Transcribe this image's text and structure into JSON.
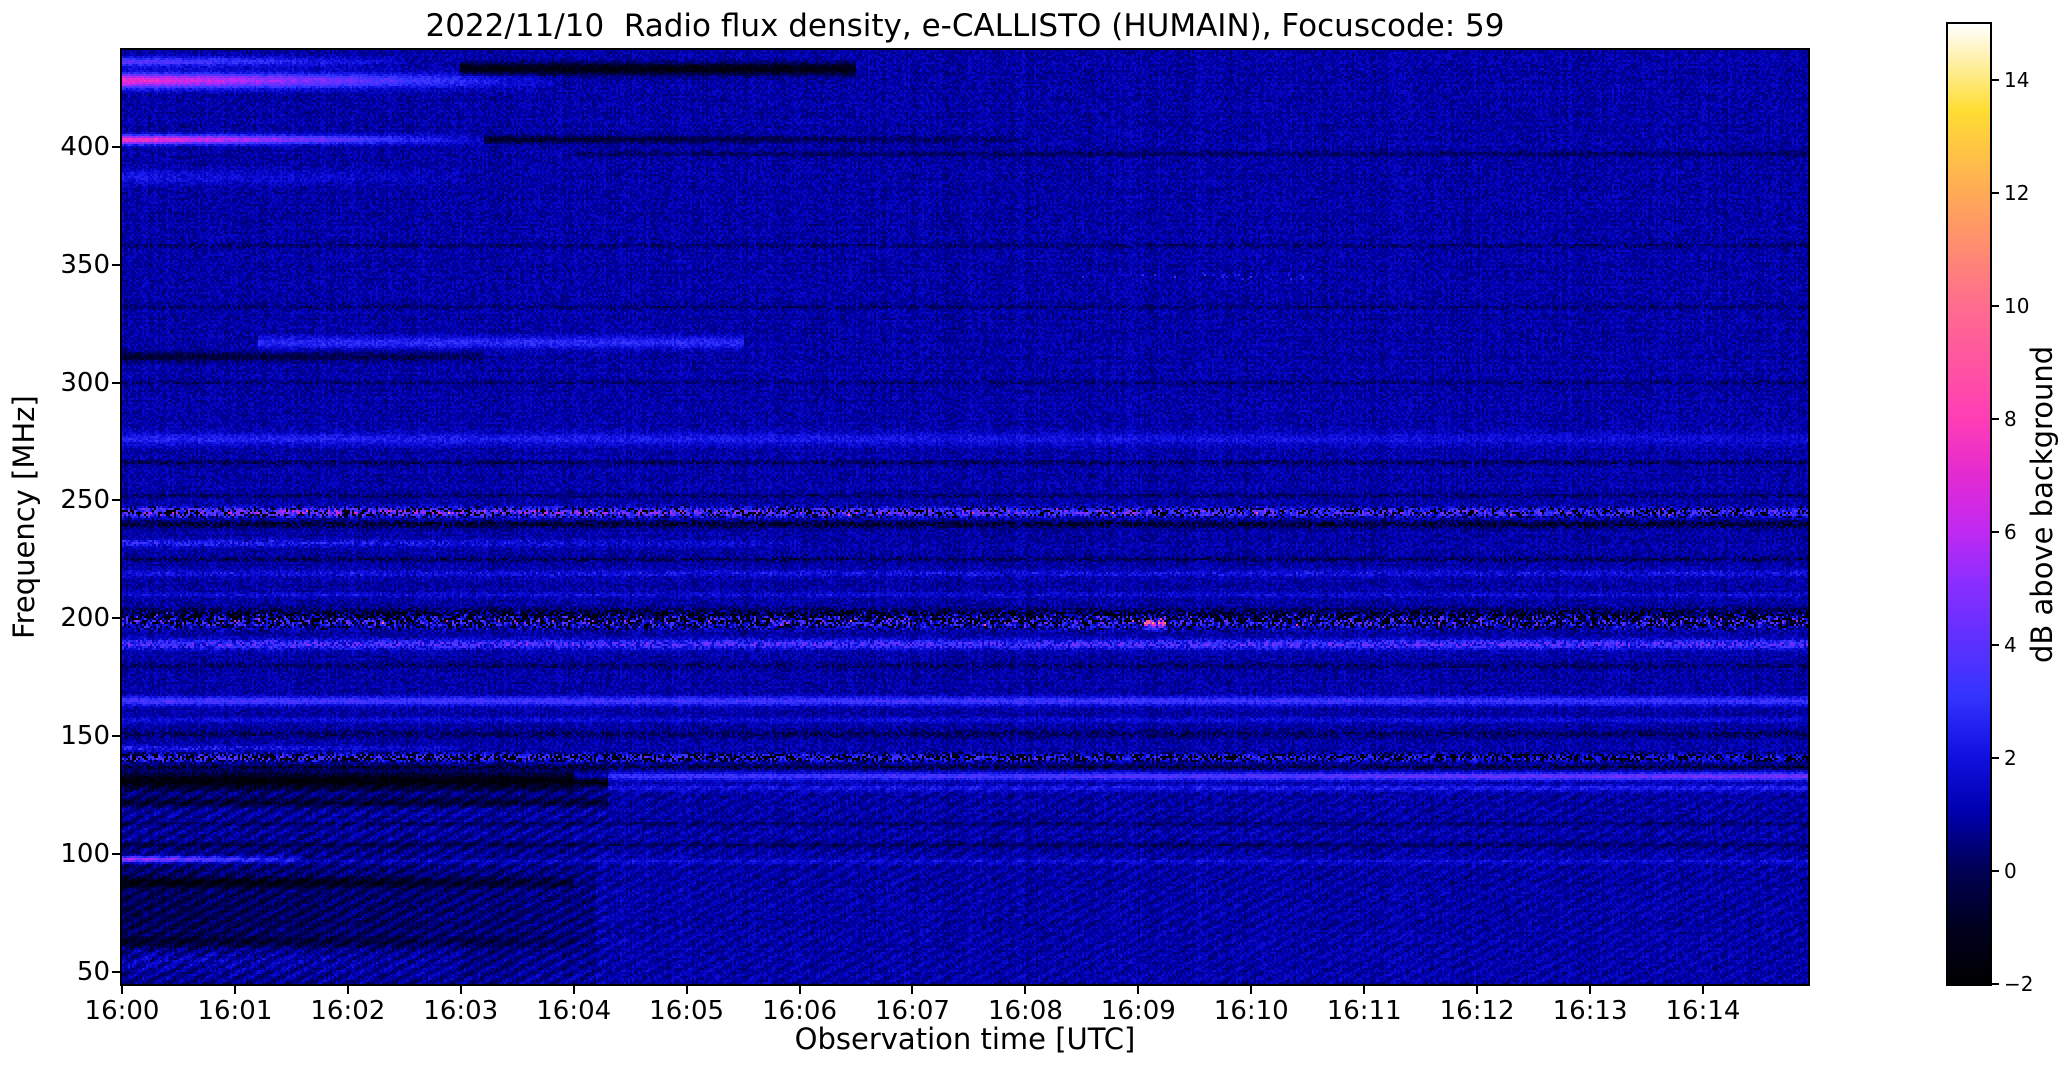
{
  "figure": {
    "background": "#ffffff",
    "text_color": "#000000"
  },
  "chart_data": {
    "type": "heatmap",
    "title": "2022/11/10  Radio flux density, e-CALLISTO (HUMAIN), Focuscode: 59",
    "xlabel": "Observation time [UTC]",
    "ylabel": "Frequency [MHz]",
    "colorbar_label": "dB above background",
    "legend_position": "right-colorbar",
    "grid": false,
    "time_range_min": [
      0,
      14.93
    ],
    "xtick_minutes": [
      0,
      1,
      2,
      3,
      4,
      5,
      6,
      7,
      8,
      9,
      10,
      11,
      12,
      13,
      14
    ],
    "xtick_labels": [
      "16:00",
      "16:01",
      "16:02",
      "16:03",
      "16:04",
      "16:05",
      "16:06",
      "16:07",
      "16:08",
      "16:09",
      "16:10",
      "16:11",
      "16:12",
      "16:13",
      "16:14"
    ],
    "freq_range_mhz": [
      45,
      441
    ],
    "ytick_freqs": [
      50,
      100,
      150,
      200,
      250,
      300,
      350,
      400
    ],
    "ytick_labels": [
      "50",
      "100",
      "150",
      "200",
      "250",
      "300",
      "350",
      "400"
    ],
    "value_range_db": [
      -2,
      15
    ],
    "colorbar_ticks": [
      {
        "v": 14,
        "label": "14"
      },
      {
        "v": 12,
        "label": "12"
      },
      {
        "v": 10,
        "label": "10"
      },
      {
        "v": 8,
        "label": "8"
      },
      {
        "v": 6,
        "label": "6"
      },
      {
        "v": 4,
        "label": "4"
      },
      {
        "v": 2,
        "label": "2"
      },
      {
        "v": 0,
        "label": "0"
      },
      {
        "v": -2,
        "label": "−2"
      }
    ],
    "colormap_name": "gnuplot2-like",
    "colormap_stops": [
      [
        0.0,
        "#000000"
      ],
      [
        0.06,
        "#000020"
      ],
      [
        0.12,
        "#000055"
      ],
      [
        0.18,
        "#0000b0"
      ],
      [
        0.24,
        "#1111e2"
      ],
      [
        0.3,
        "#3434ff"
      ],
      [
        0.36,
        "#6030ff"
      ],
      [
        0.42,
        "#8c2eff"
      ],
      [
        0.47,
        "#bf29f2"
      ],
      [
        0.53,
        "#e32ad2"
      ],
      [
        0.59,
        "#ff3eb4"
      ],
      [
        0.71,
        "#ff6e8c"
      ],
      [
        0.82,
        "#ffa858"
      ],
      [
        0.91,
        "#ffdd33"
      ],
      [
        1.0,
        "#ffffff"
      ]
    ],
    "background_db": 1.0,
    "noise_db": 0.6,
    "texture": {
      "f_max": 130,
      "t_split": 4.3,
      "amp_left": 0.5,
      "amp_right": 0.28
    },
    "bands": [
      {
        "f": 428,
        "hw": 3.0,
        "t": [
          0,
          3.8
        ],
        "v": [
          6.5,
          0.5
        ],
        "style": "smooth"
      },
      {
        "f": 436,
        "hw": 2.0,
        "t": [
          0,
          2.5
        ],
        "v": [
          3.0,
          0.5
        ],
        "style": "smooth"
      },
      {
        "f": 433,
        "hw": 2.5,
        "t": [
          3.0,
          6.5
        ],
        "v": [
          -2.5,
          -2.5
        ],
        "style": "smooth"
      },
      {
        "f": 403,
        "hw": 1.8,
        "t": [
          0,
          3.2
        ],
        "v": [
          7.0,
          0.5
        ],
        "style": "smooth"
      },
      {
        "f": 403,
        "hw": 1.6,
        "t": [
          3.2,
          8.0
        ],
        "v": [
          -1.8,
          -0.5
        ],
        "style": "smooth"
      },
      {
        "f": 397,
        "hw": 1.0,
        "t": [
          4,
          14.93
        ],
        "v": [
          -0.9,
          -0.9
        ],
        "style": "smooth"
      },
      {
        "f": 387,
        "hw": 3.0,
        "t": [
          0,
          3.0
        ],
        "v": [
          1.2,
          0.3
        ],
        "style": "smooth"
      },
      {
        "f": 358,
        "hw": 1.0,
        "t": [
          0,
          14.93
        ],
        "v": [
          -0.7,
          -0.7
        ],
        "style": "speckle"
      },
      {
        "f": 345,
        "hw": 1.5,
        "t": [
          8.5,
          10.5
        ],
        "v": [
          1.5,
          1.5
        ],
        "style": "speckle",
        "sparse": 0.1
      },
      {
        "f": 332,
        "hw": 1.0,
        "t": [
          0,
          14.93
        ],
        "v": [
          -0.6,
          -0.6
        ],
        "style": "speckle"
      },
      {
        "f": 311,
        "hw": 2.0,
        "t": [
          0,
          3.2
        ],
        "v": [
          -1.6,
          -0.8
        ],
        "style": "smooth"
      },
      {
        "f": 317,
        "hw": 2.5,
        "t": [
          1.2,
          5.5
        ],
        "v": [
          1.8,
          1.8
        ],
        "style": "smooth"
      },
      {
        "f": 300,
        "hw": 0.8,
        "t": [
          0,
          14.93
        ],
        "v": [
          -0.7,
          -0.7
        ],
        "style": "speckle"
      },
      {
        "f": 276,
        "hw": 2.5,
        "t": [
          0,
          14.93
        ],
        "v": [
          1.6,
          0.8
        ],
        "style": "smooth"
      },
      {
        "f": 266,
        "hw": 1.0,
        "t": [
          0,
          14.93
        ],
        "v": [
          -0.9,
          -0.9
        ],
        "style": "speckle"
      },
      {
        "f": 252,
        "hw": 0.8,
        "t": [
          0,
          14.93
        ],
        "v": [
          -0.8,
          -0.8
        ],
        "style": "speckle"
      },
      {
        "f": 245,
        "hw": 2.0,
        "t": [
          0,
          14.93
        ],
        "v": [
          3.4,
          2.0
        ],
        "style": "speckle",
        "dark": 0.3,
        "spike": 0.003
      },
      {
        "f": 240,
        "hw": 1.5,
        "t": [
          0,
          14.93
        ],
        "v": [
          -1.5,
          -1.5
        ],
        "style": "speckle"
      },
      {
        "f": 232,
        "hw": 1.5,
        "t": [
          0,
          6.0
        ],
        "v": [
          1.5,
          0.5
        ],
        "style": "speckle"
      },
      {
        "f": 225,
        "hw": 1.0,
        "t": [
          0,
          14.93
        ],
        "v": [
          -1.0,
          -1.0
        ],
        "style": "speckle"
      },
      {
        "f": 219,
        "hw": 1.5,
        "t": [
          0,
          14.93
        ],
        "v": [
          0.9,
          0.9
        ],
        "style": "speckle"
      },
      {
        "f": 210,
        "hw": 1.0,
        "t": [
          0,
          14.93
        ],
        "v": [
          0.7,
          0.7
        ],
        "style": "speckle"
      },
      {
        "f": 200,
        "hw": 3.5,
        "t": [
          0,
          14.93
        ],
        "v": [
          -2.8,
          -2.8
        ],
        "style": "speckle"
      },
      {
        "f": 199,
        "hw": 3.0,
        "t": [
          0,
          14.93
        ],
        "v": [
          3.2,
          3.2
        ],
        "style": "speckle",
        "dark": 0.25,
        "spike": 0.004
      },
      {
        "f": 198,
        "hw": 2.0,
        "t": [
          9.05,
          9.25
        ],
        "v": [
          6.5,
          6.5
        ],
        "style": "smooth"
      },
      {
        "f": 189,
        "hw": 2.0,
        "t": [
          0,
          14.93
        ],
        "v": [
          2.2,
          2.2
        ],
        "style": "speckle"
      },
      {
        "f": 180,
        "hw": 1.0,
        "t": [
          0,
          14.93
        ],
        "v": [
          -0.8,
          -0.8
        ],
        "style": "speckle"
      },
      {
        "f": 165,
        "hw": 1.8,
        "t": [
          0,
          14.93
        ],
        "v": [
          2.6,
          2.2
        ],
        "style": "smooth"
      },
      {
        "f": 157,
        "hw": 1.2,
        "t": [
          0,
          14.93
        ],
        "v": [
          0.8,
          0.8
        ],
        "style": "smooth"
      },
      {
        "f": 151,
        "hw": 1.5,
        "t": [
          0,
          14.93
        ],
        "v": [
          -0.9,
          -0.9
        ],
        "style": "speckle"
      },
      {
        "f": 145,
        "hw": 1.0,
        "t": [
          0,
          3.0
        ],
        "v": [
          1.5,
          0.5
        ],
        "style": "speckle"
      },
      {
        "f": 141,
        "hw": 1.8,
        "t": [
          0,
          14.93
        ],
        "v": [
          2.2,
          1.0
        ],
        "style": "speckle",
        "dark": 0.45
      },
      {
        "f": 137,
        "hw": 1.2,
        "t": [
          0,
          14.93
        ],
        "v": [
          -1.2,
          -1.2
        ],
        "style": "speckle"
      },
      {
        "f": 131,
        "hw": 4.0,
        "t": [
          0,
          4.3
        ],
        "v": [
          -2.6,
          -2.6
        ],
        "style": "smooth"
      },
      {
        "f": 133,
        "hw": 1.6,
        "t": [
          4.0,
          14.93
        ],
        "v": [
          2.0,
          3.6
        ],
        "style": "smooth"
      },
      {
        "f": 128,
        "hw": 1.2,
        "t": [
          4.0,
          14.93
        ],
        "v": [
          1.0,
          1.6
        ],
        "style": "smooth"
      },
      {
        "f": 122,
        "hw": 2.0,
        "t": [
          0,
          4.3
        ],
        "v": [
          -1.5,
          -1.5
        ],
        "style": "smooth"
      },
      {
        "f": 113,
        "hw": 0.8,
        "t": [
          0,
          14.93
        ],
        "v": [
          -0.8,
          -0.8
        ],
        "style": "smooth"
      },
      {
        "f": 104,
        "hw": 1.0,
        "t": [
          0,
          14.93
        ],
        "v": [
          -0.8,
          -0.8
        ],
        "style": "smooth"
      },
      {
        "f": 98,
        "hw": 1.2,
        "t": [
          0,
          1.6
        ],
        "v": [
          5.0,
          1.0
        ],
        "style": "smooth"
      },
      {
        "f": 97,
        "hw": 1.0,
        "t": [
          0,
          14.93
        ],
        "v": [
          0.8,
          0.8
        ],
        "style": "smooth"
      },
      {
        "f": 88,
        "hw": 2.0,
        "t": [
          0,
          4.0
        ],
        "v": [
          -1.8,
          -1.0
        ],
        "style": "smooth"
      },
      {
        "f": 75,
        "hw": 30,
        "t": [
          0,
          4.2
        ],
        "v": [
          -1.1,
          -0.5
        ],
        "style": "smooth"
      },
      {
        "f": 63,
        "hw": 2.0,
        "t": [
          0,
          4.0
        ],
        "v": [
          -1.2,
          -0.6
        ],
        "style": "smooth"
      },
      {
        "f": 55,
        "hw": 6.0,
        "t": [
          0,
          3.0
        ],
        "v": [
          0.8,
          0.3
        ],
        "style": "speckle"
      }
    ]
  }
}
